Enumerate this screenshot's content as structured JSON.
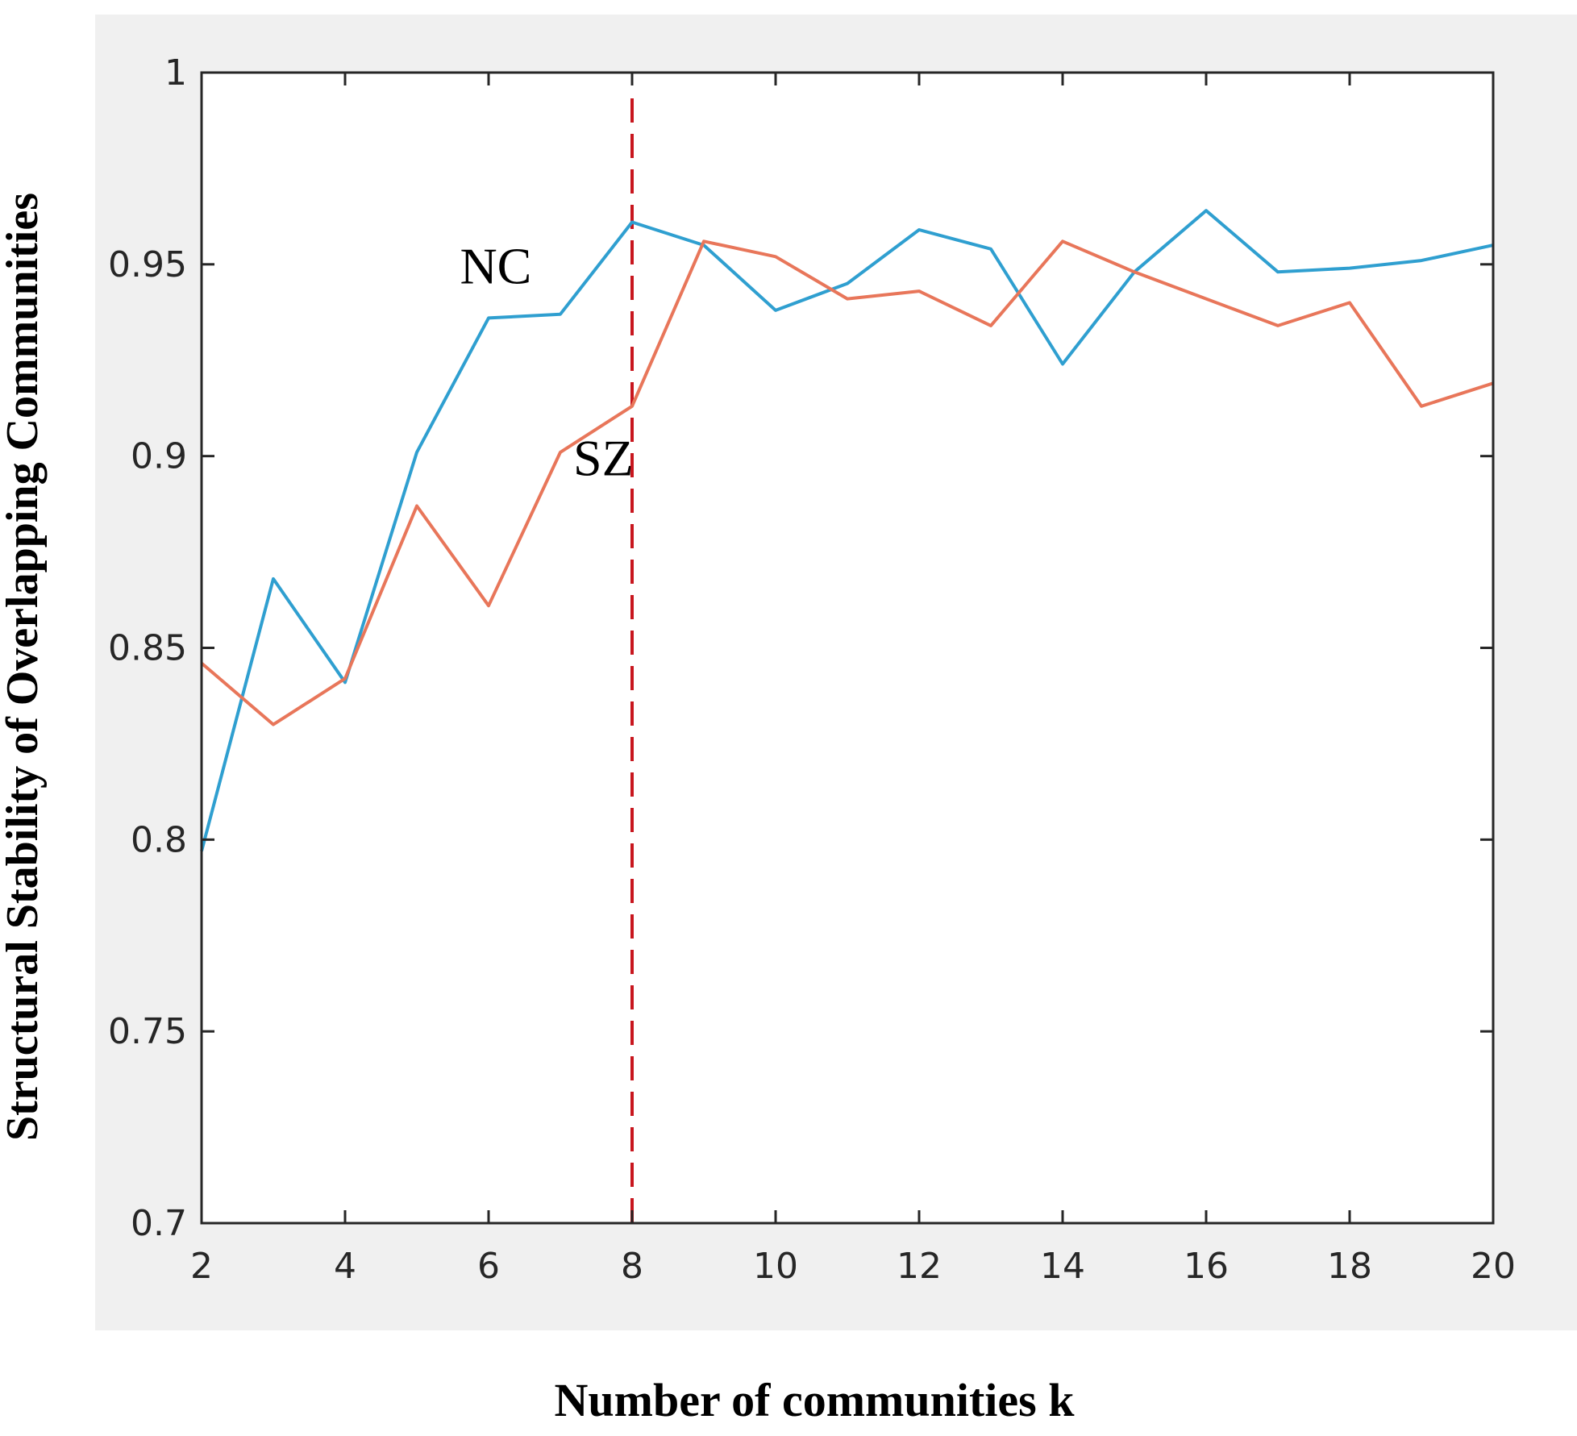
{
  "chart_data": {
    "type": "line",
    "xlabel": "Number of communities k",
    "ylabel": "Structural Stability of Overlapping Communities",
    "xlim": [
      2,
      20
    ],
    "ylim": [
      0.7,
      1.0
    ],
    "xticks": [
      "2",
      "4",
      "6",
      "8",
      "10",
      "12",
      "14",
      "16",
      "18",
      "20"
    ],
    "yticks": [
      "0.7",
      "0.75",
      "0.8",
      "0.85",
      "0.9",
      "0.95",
      "1"
    ],
    "grid": false,
    "x": [
      2,
      3,
      4,
      5,
      6,
      7,
      8,
      9,
      10,
      11,
      12,
      13,
      14,
      15,
      16,
      17,
      18,
      19,
      20
    ],
    "series": [
      {
        "name": "NC",
        "color": "#2f9fd0",
        "values": [
          0.797,
          0.868,
          0.841,
          0.901,
          0.936,
          0.937,
          0.961,
          0.955,
          0.938,
          0.945,
          0.959,
          0.954,
          0.924,
          0.948,
          0.964,
          0.948,
          0.949,
          0.951,
          0.955
        ]
      },
      {
        "name": "SZ",
        "color": "#e8765a",
        "values": [
          0.846,
          0.83,
          0.842,
          0.887,
          0.861,
          0.901,
          0.913,
          0.956,
          0.952,
          0.941,
          0.943,
          0.934,
          0.956,
          0.948,
          0.941,
          0.934,
          0.94,
          0.913,
          0.919
        ]
      }
    ],
    "reference_line": {
      "x": 8,
      "color": "#c8161e",
      "style": "dashed"
    },
    "annotations": [
      {
        "text": "NC",
        "x": 6.1,
        "y": 0.945
      },
      {
        "text": "SZ",
        "x": 7.6,
        "y": 0.895
      }
    ],
    "colors": {
      "panel_background": "#f0f0f0",
      "plot_background": "#ffffff",
      "axes": "#262626"
    }
  }
}
